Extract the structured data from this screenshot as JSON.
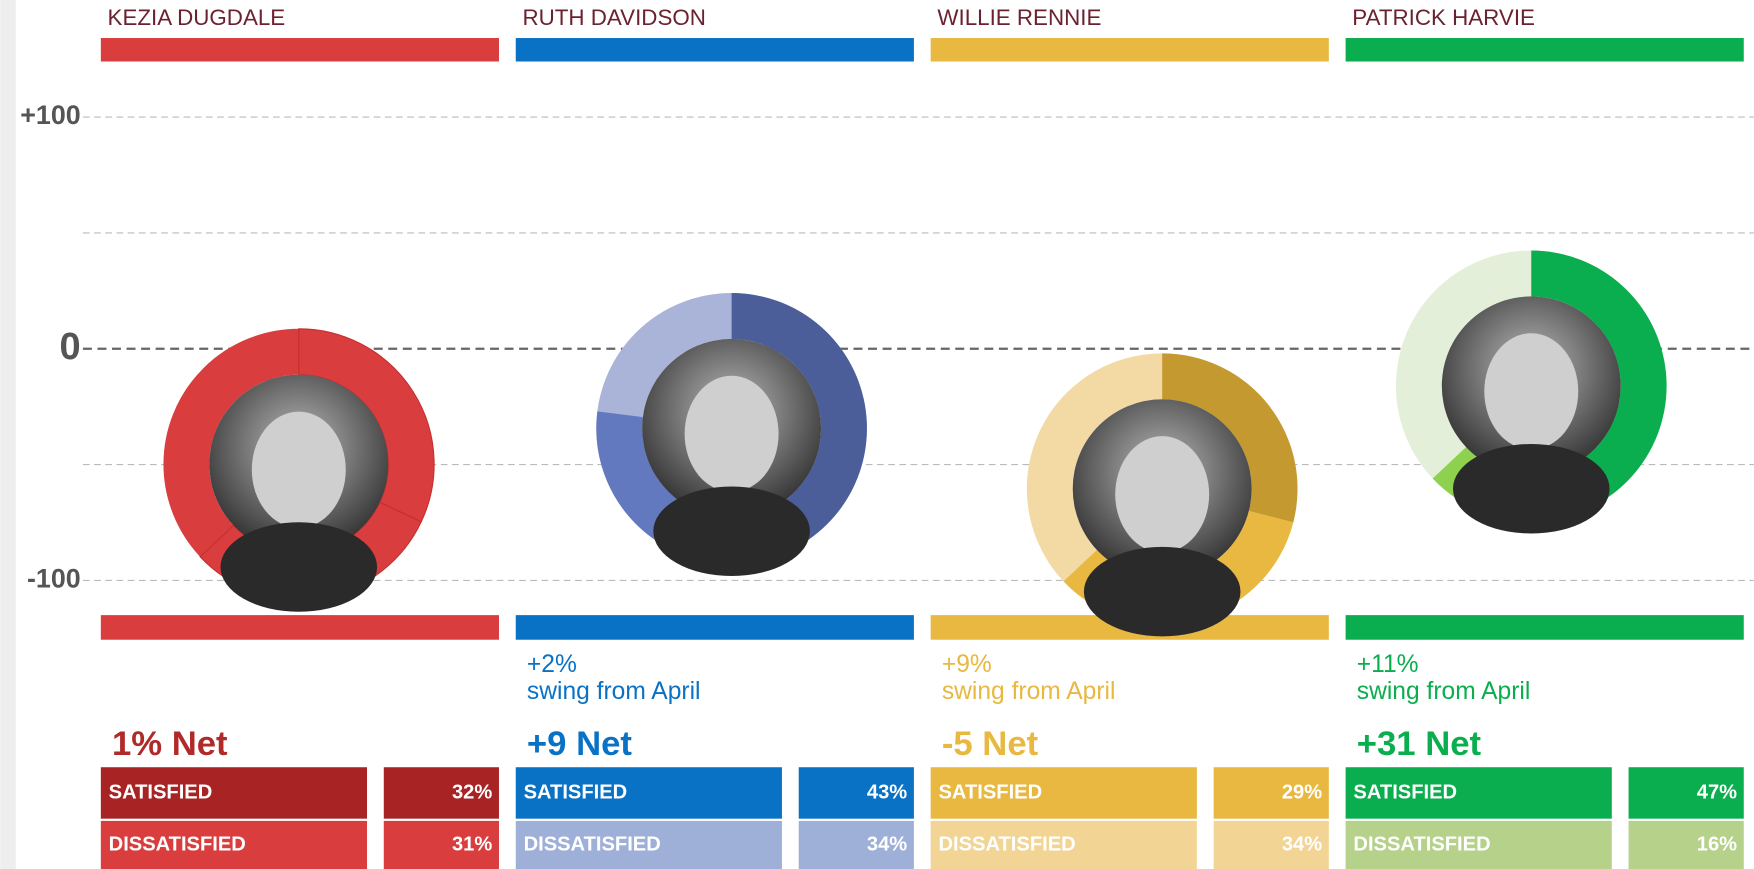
{
  "chart_data": {
    "type": "donut",
    "ylim": [
      -114,
      124
    ],
    "yticks": [
      {
        "value": 100,
        "label": "+100"
      },
      {
        "value": 50,
        "label": null
      },
      {
        "value": 0,
        "label": "0"
      },
      {
        "value": -50,
        "label": null
      },
      {
        "value": -100,
        "label": "-100"
      }
    ],
    "grid": true,
    "series": [
      {
        "name": "KEZIA DUGDALE",
        "color": "#d93d3d",
        "colors": [
          "#d93d3d",
          "#d93d3d",
          "#d93d3d"
        ],
        "table_colors": [
          "#a82424",
          "#d93d3d"
        ],
        "net_color": "#b02a2a",
        "net_label": "1% Net",
        "swing": null,
        "swing_text": null,
        "satisfied_label": "SATISFIED",
        "dissatisfied_label": "DISSATISFIED",
        "values": [
          32,
          31
        ],
        "value_labels": [
          "32%",
          "31%"
        ]
      },
      {
        "name": "RUTH DAVIDSON",
        "color": "#0a72c4",
        "colors": [
          "#4b5e9a",
          "#6278bf",
          "#aab4d8"
        ],
        "table_colors": [
          "#0a72c4",
          "#9fb0d8"
        ],
        "net_color": "#0a72c4",
        "net_label": "+9 Net",
        "swing": "+2%",
        "swing_text": "swing from April",
        "satisfied_label": "SATISFIED",
        "dissatisfied_label": "DISSATISFIED",
        "values": [
          43,
          34
        ],
        "value_labels": [
          "43%",
          "34%"
        ]
      },
      {
        "name": "WILLIE RENNIE",
        "color": "#e8b840",
        "colors": [
          "#c49a30",
          "#e8b840",
          "#f3d9a3"
        ],
        "table_colors": [
          "#e8b840",
          "#f2d595"
        ],
        "net_color": "#e8b840",
        "net_label": "-5 Net",
        "swing": "+9%",
        "swing_text": "swing from April",
        "satisfied_label": "SATISFIED",
        "dissatisfied_label": "DISSATISFIED",
        "values": [
          29,
          34
        ],
        "value_labels": [
          "29%",
          "34%"
        ]
      },
      {
        "name": "PATRICK HARVIE",
        "color": "#0aae4e",
        "colors": [
          "#0aae4e",
          "#8ed14e",
          "#e4efd9"
        ],
        "table_colors": [
          "#0aae4e",
          "#b5d18a"
        ],
        "net_color": "#0aae4e",
        "net_label": "+31 Net",
        "swing": "+11%",
        "swing_text": "swing from April",
        "satisfied_label": "SATISFIED",
        "dissatisfied_label": "DISSATISFIED",
        "values": [
          47,
          16
        ],
        "value_labels": [
          "47%",
          "16%"
        ]
      }
    ]
  }
}
